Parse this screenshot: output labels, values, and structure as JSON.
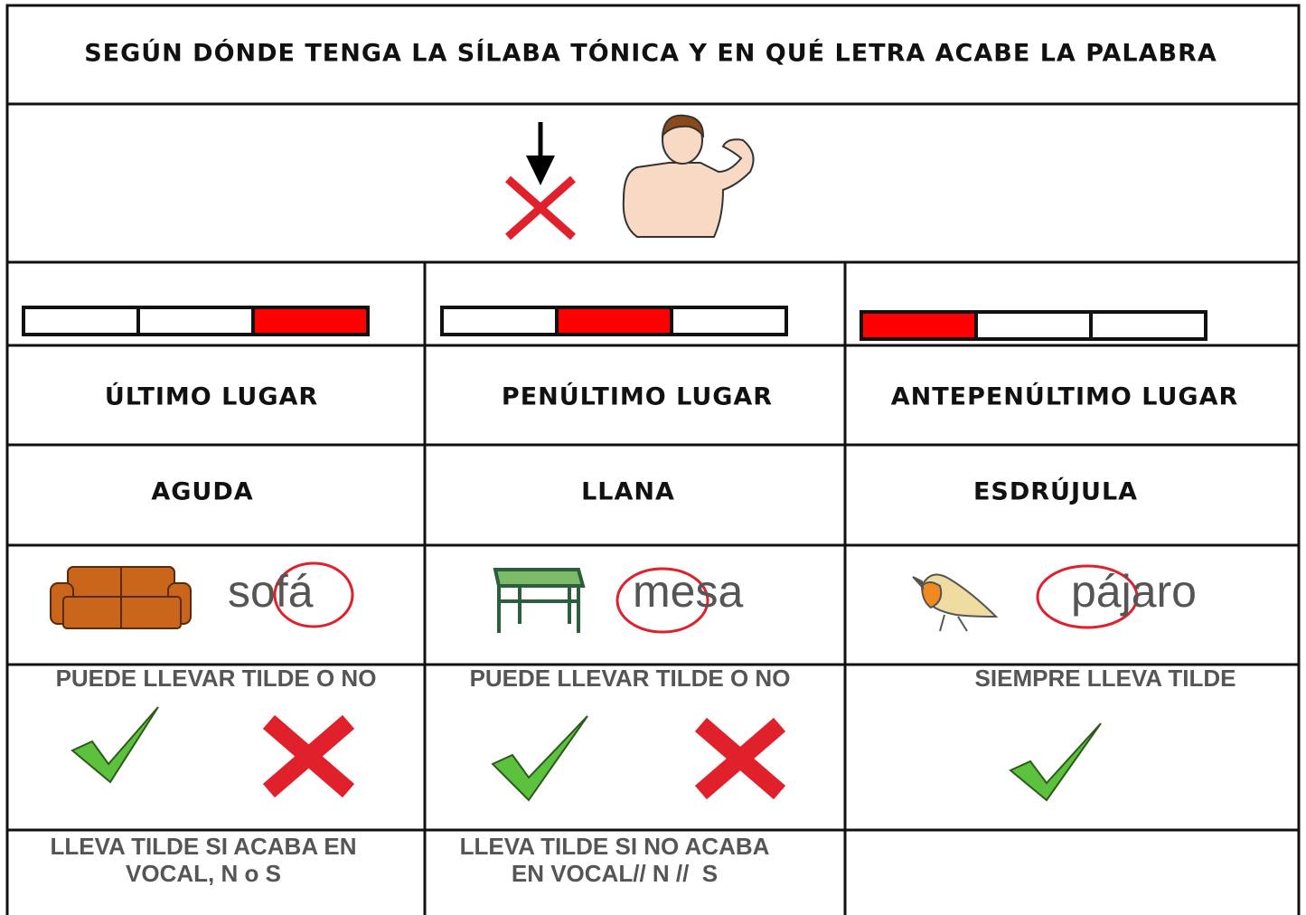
{
  "header": {
    "title": "SEGÚN DÓNDE TENGA LA SÍLABA TÓNICA Y EN QUÉ LETRA ACABE LA PALABRA"
  },
  "columns": [
    {
      "position": "ÚLTIMO LUGAR",
      "type": "AGUDA",
      "word": "sofá",
      "rule": "PUEDE LLEVAR TILDE O NO",
      "note": [
        "LLEVA TILDE SI ACABA EN",
        "VOCAL, N o S"
      ]
    },
    {
      "position": "PENÚLTIMO LUGAR",
      "type": "LLANA",
      "word": "mesa",
      "rule": "PUEDE LLEVAR TILDE O NO",
      "note": [
        "LLEVA TILDE SI NO ACABA",
        "EN VOCAL// N //  S"
      ]
    },
    {
      "position": "ANTEPENÚLTIMO LUGAR",
      "type": "ESDRÚJULA",
      "word": "pájaro",
      "rule": "SIEMPRE LLEVA TILDE",
      "note": []
    }
  ]
}
